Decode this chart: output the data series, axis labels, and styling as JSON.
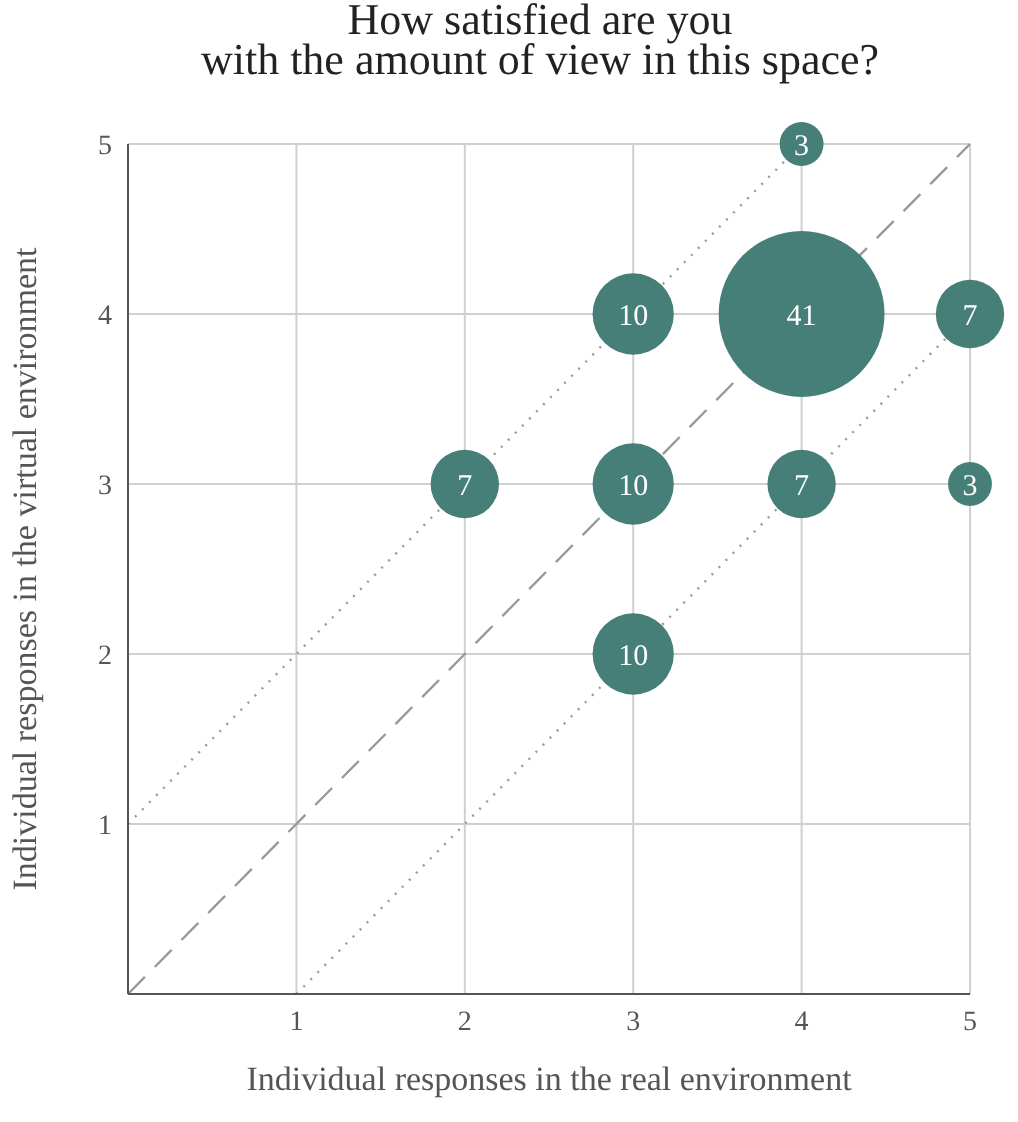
{
  "chart_data": {
    "type": "bubble",
    "title": "How satisfied are you\nwith the amount of view in this space?",
    "xlabel": "Individual responses in the real environment",
    "ylabel": "Individual responses in the virtual environment",
    "xlim": [
      0,
      5
    ],
    "ylim": [
      0,
      5
    ],
    "xticks": [
      1,
      2,
      3,
      4,
      5
    ],
    "yticks": [
      1,
      2,
      3,
      4,
      5
    ],
    "grid": true,
    "series": [
      {
        "type": "line",
        "color": "#999999",
        "line_style": "dotted",
        "x": [
          0,
          4
        ],
        "values": [
          1,
          5
        ]
      },
      {
        "type": "line",
        "color": "#999999",
        "line_style": "dashed",
        "x": [
          0,
          5
        ],
        "values": [
          0,
          5
        ]
      },
      {
        "type": "line",
        "color": "#999999",
        "line_style": "dotted",
        "x": [
          1,
          5
        ],
        "values": [
          0,
          4
        ]
      },
      {
        "color": "#467f78",
        "x": [
          4,
          3,
          4,
          5,
          2,
          3,
          4,
          5,
          3
        ],
        "values": [
          5,
          4,
          4,
          4,
          3,
          3,
          3,
          3,
          2
        ],
        "sizes": [
          0.07,
          0.24,
          1,
          0.17,
          0.17,
          0.24,
          0.17,
          0.07,
          0.24
        ]
      }
    ],
    "annotations": [
      {
        "text": "3",
        "x": 4,
        "y": 5
      },
      {
        "text": "10",
        "x": 3,
        "y": 4
      },
      {
        "text": "41",
        "x": 4,
        "y": 4
      },
      {
        "text": "7",
        "x": 5,
        "y": 4
      },
      {
        "text": "7",
        "x": 2,
        "y": 3
      },
      {
        "text": "10",
        "x": 3,
        "y": 3
      },
      {
        "text": "7",
        "x": 4,
        "y": 3
      },
      {
        "text": "3",
        "x": 5,
        "y": 3
      },
      {
        "text": "10",
        "x": 3,
        "y": 2
      }
    ]
  }
}
